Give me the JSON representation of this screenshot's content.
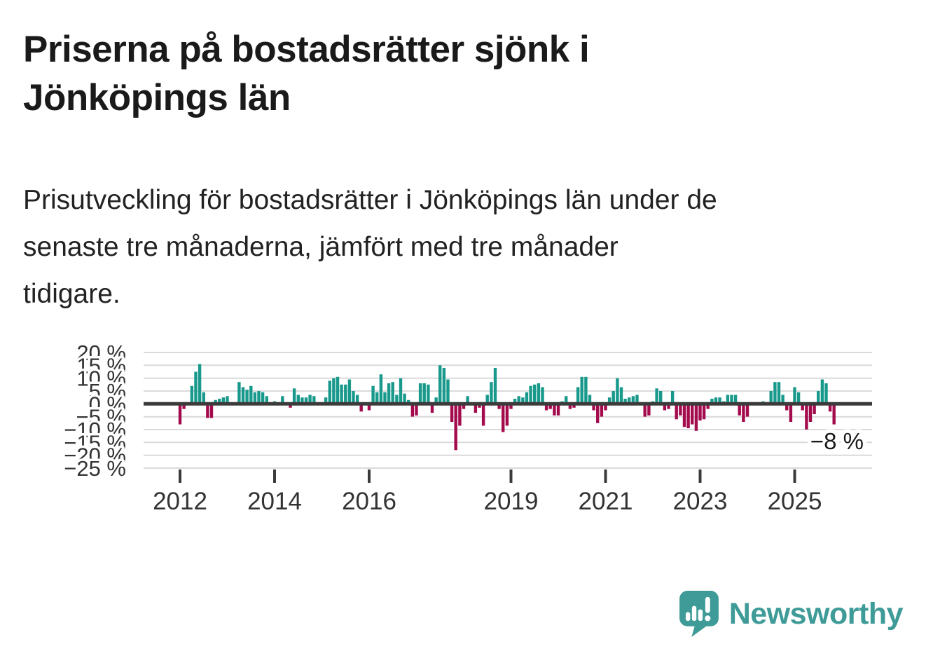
{
  "header": {
    "title": "Priserna på bostadsrätter sjönk i\nJönköpings län"
  },
  "subtitle": "Prisutveckling för bostadsrätter i Jönköpings län under de\nsenaste tre månaderna, jämfört med tre månader\ntidigare.",
  "footer": {
    "brand": "Newsworthy",
    "logo_icon": "newsworthy-speech-bubble-bar-chart-icon"
  },
  "colors": {
    "positive": "#18998b",
    "negative": "#a30b4c",
    "grid": "#dadada",
    "axis": "#3b3b3b",
    "tick_text": "#333333",
    "annotation_text": "#1a1a1a",
    "brand_teal": "#3e9b97"
  },
  "chart_data": {
    "type": "bar",
    "title": "Prisutveckling för bostadsrätter i Jönköpings län, tre månader jämfört med tre månader tidigare",
    "unit": "%",
    "start_month": "2012-01",
    "frequency": "monthly",
    "ylim": [
      -25,
      20
    ],
    "grid": true,
    "y_tick_values": [
      20,
      15,
      10,
      5,
      0,
      -5,
      -10,
      -15,
      -20,
      -25
    ],
    "y_tick_labels": [
      "20 %",
      "15 %",
      "10 %",
      "5 %",
      "0 %",
      "−5 %",
      "−10 %",
      "−15 %",
      "−20 %",
      "−25 %"
    ],
    "x_tick_labels": [
      "2012",
      "2014",
      "2016",
      "2019",
      "2021",
      "2023",
      "2025"
    ],
    "x_tick_month_index": [
      0,
      24,
      48,
      84,
      108,
      132,
      156
    ],
    "values": [
      -8,
      -2,
      0,
      7,
      12.5,
      15.5,
      4.5,
      -5.5,
      -5.5,
      1.5,
      2,
      2.5,
      3,
      0.5,
      0.5,
      8.5,
      6.5,
      5.5,
      7,
      4.5,
      5,
      4.5,
      3,
      0.5,
      1,
      0.5,
      3,
      0,
      -1.5,
      6,
      3.5,
      2.5,
      2.5,
      3.5,
      3,
      0.5,
      0,
      2.5,
      9,
      10,
      10.5,
      7.5,
      7.5,
      9.5,
      5,
      3.5,
      -3,
      0,
      -2.5,
      7,
      4.5,
      11.5,
      4.5,
      8,
      8.5,
      3.5,
      10,
      4,
      1.5,
      -5,
      -4.5,
      8,
      8,
      7.5,
      -3.5,
      2.5,
      15,
      14,
      9.5,
      -7,
      -18,
      -8.5,
      -2,
      3,
      0,
      -3.5,
      -1.5,
      -8.5,
      3.5,
      8.5,
      14,
      -2,
      -11,
      -8.5,
      -2,
      2,
      3,
      2.5,
      4.5,
      7,
      7.5,
      8,
      6.5,
      -2.5,
      -2,
      -4.5,
      -4.5,
      1,
      3,
      -2,
      -1.5,
      6.5,
      10.5,
      10.5,
      3.5,
      -2.5,
      -7.5,
      -5,
      -2.5,
      2.5,
      5,
      10,
      6.5,
      2,
      2.5,
      3,
      3.5,
      0.5,
      -5,
      -4.5,
      1,
      6,
      5,
      -2.5,
      -2,
      5,
      -6,
      -4.5,
      -9,
      -9.5,
      -8,
      -10.5,
      -6.5,
      -6,
      -2,
      2,
      2.5,
      2.5,
      1,
      3.5,
      3.5,
      3.5,
      -4.5,
      -7,
      -5,
      0.5,
      0.5,
      0.5,
      1,
      0.5,
      5,
      8.5,
      8.5,
      3.5,
      -2.5,
      -7,
      6.5,
      4.5,
      -2.5,
      -10,
      -7,
      -4,
      5,
      9.5,
      8,
      -3,
      -8
    ],
    "annotation": {
      "text": "−8 %",
      "refers_to": "last value"
    },
    "legend": "none"
  }
}
